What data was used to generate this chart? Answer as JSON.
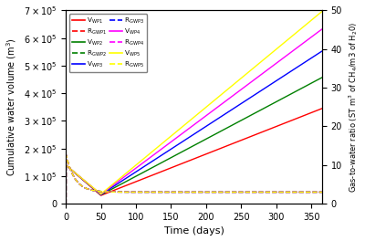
{
  "colors": [
    "red",
    "green",
    "blue",
    "magenta",
    "yellow"
  ],
  "labels_V": [
    "V$_\\mathregular{WP1}$",
    "V$_\\mathregular{WP2}$",
    "V$_\\mathregular{WP3}$",
    "V$_\\mathregular{WP4}$",
    "V$_\\mathregular{WP5}$"
  ],
  "labels_R": [
    "R$_\\mathregular{GWP1}$",
    "R$_\\mathregular{GWP2}$",
    "R$_\\mathregular{GWP3}$",
    "R$_\\mathregular{GWP4}$",
    "R$_\\mathregular{GWP5}$"
  ],
  "xlim": [
    0,
    365
  ],
  "ylim_left": [
    0,
    700000
  ],
  "ylim_right": [
    0,
    50
  ],
  "xlabel": "Time (days)",
  "ylabel_left": "Cumulative water volume (m$^3$)",
  "ylabel_right": "Gas-to-water ratio (ST m$^3$ of CH$_4$/m3 of H$_2$0)",
  "yticks_left": [
    0,
    100000,
    200000,
    300000,
    400000,
    500000,
    600000,
    700000
  ],
  "ytick_labels_left": [
    "0",
    "1×10$^5$",
    "2×10$^5$",
    "3×10$^5$",
    "4×10$^5$",
    "5×10$^5$",
    "6×10$^5$",
    "7×10$^5$"
  ],
  "yticks_right": [
    0,
    10,
    20,
    30,
    40,
    50
  ],
  "xticks": [
    0,
    50,
    100,
    150,
    200,
    250,
    300,
    350
  ],
  "peak_val": 140000,
  "dip_t": 50,
  "dip_vals": [
    30000,
    32000,
    33000,
    34000,
    35000
  ],
  "slopes": [
    1000,
    1350,
    1650,
    1900,
    2100
  ],
  "r_peak": 10,
  "r_settle": 3.0,
  "r_decay": 0.08
}
